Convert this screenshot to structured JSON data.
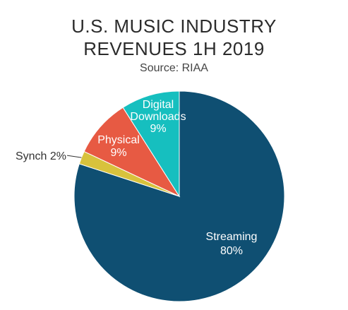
{
  "chart_data": {
    "type": "pie",
    "title": "U.S. MUSIC INDUSTRY REVENUES 1H 2019",
    "title_lines": [
      "U.S. MUSIC INDUSTRY",
      "REVENUES 1H 2019"
    ],
    "subtitle": "Source: RIAA",
    "slices": [
      {
        "name": "Streaming",
        "value": 80,
        "label_lines": [
          "Streaming",
          "80%"
        ],
        "color": "#0f4f72",
        "label_style": "inside"
      },
      {
        "name": "Synch",
        "value": 2,
        "label_lines": [
          "Synch 2%"
        ],
        "color": "#d8c23c",
        "label_style": "leader"
      },
      {
        "name": "Physical",
        "value": 9,
        "label_lines": [
          "Physical",
          "9%"
        ],
        "color": "#e75a43",
        "label_style": "inside"
      },
      {
        "name": "Digital Downloads",
        "value": 9,
        "label_lines": [
          "Digital",
          "Downloads",
          "9%"
        ],
        "color": "#16bfbf",
        "label_style": "inside"
      }
    ],
    "start_angle": "12 o'clock",
    "direction": "clockwise",
    "legend": "none"
  }
}
